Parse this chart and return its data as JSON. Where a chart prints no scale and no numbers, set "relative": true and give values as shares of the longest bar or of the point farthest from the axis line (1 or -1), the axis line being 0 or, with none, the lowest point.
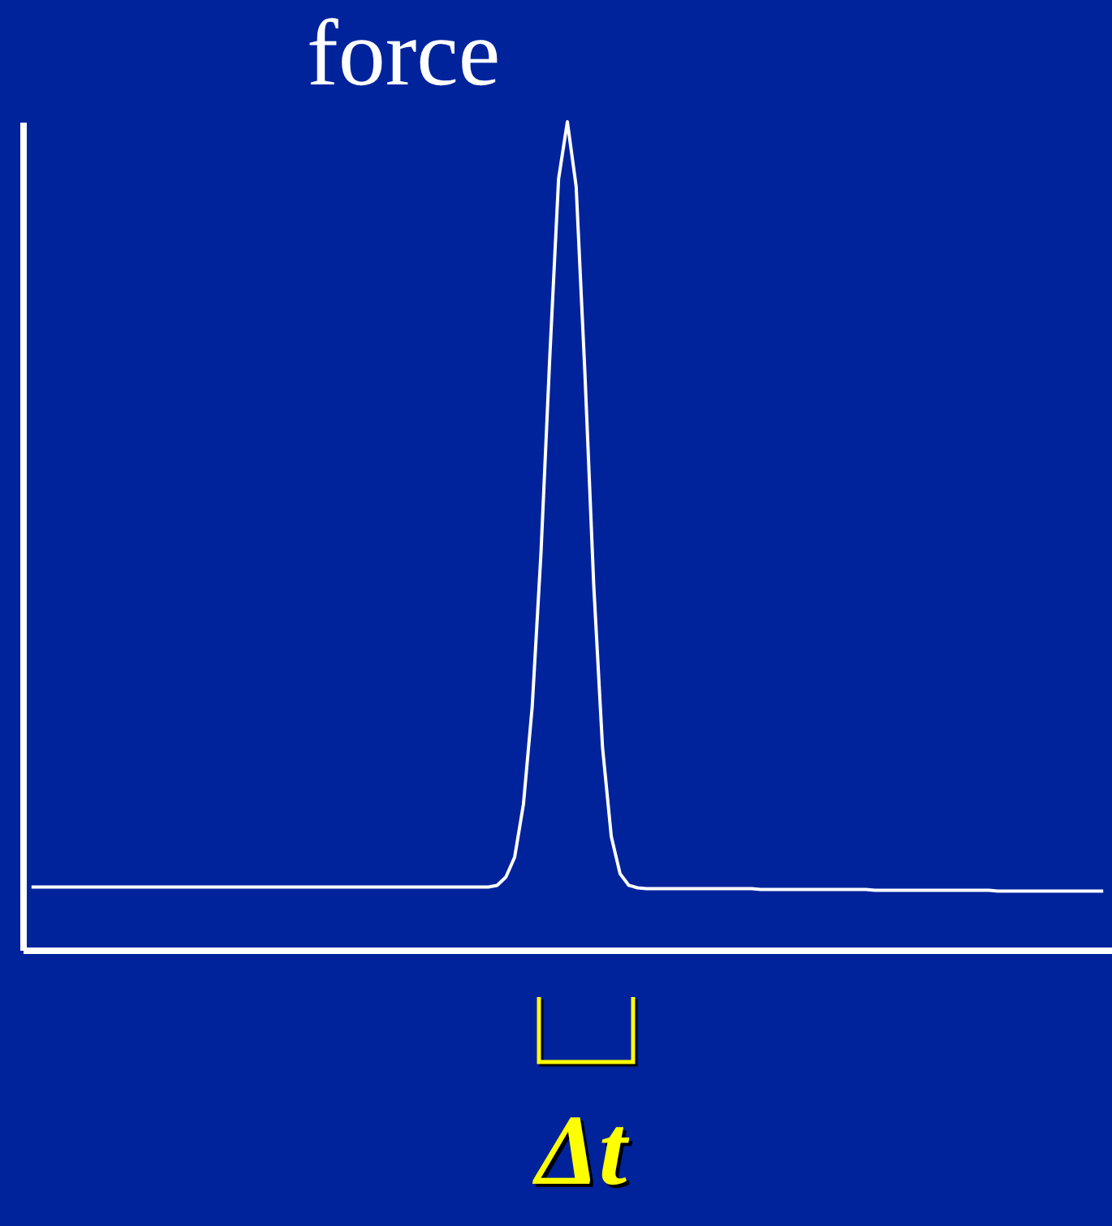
{
  "chart_data": {
    "type": "line",
    "title": "force",
    "relative": true,
    "grid": false,
    "line_style": "solid",
    "categories": [
      null,
      null,
      null,
      null,
      null,
      null,
      null,
      null,
      null,
      null,
      null,
      null,
      null,
      null,
      null,
      null,
      null,
      null,
      null,
      null,
      null,
      null,
      null,
      null,
      null,
      null,
      null,
      null,
      null,
      null,
      null,
      null,
      null,
      null,
      null,
      null,
      null,
      null,
      null,
      null,
      null,
      null,
      null,
      null,
      null,
      null,
      null,
      null,
      null,
      null,
      null,
      null,
      null,
      null,
      null,
      null,
      null,
      null,
      null,
      null,
      null,
      null,
      null,
      null,
      null,
      null,
      null,
      null,
      null,
      null,
      null,
      null,
      null,
      null,
      null,
      null,
      null,
      null,
      null,
      null,
      null,
      null,
      null,
      null,
      null,
      null,
      null,
      null,
      null,
      null,
      null,
      null,
      null,
      null,
      null,
      null,
      null,
      null,
      null,
      null,
      null,
      null,
      null,
      null,
      null,
      null,
      null,
      null,
      null,
      null,
      null,
      null,
      null,
      null,
      null,
      null,
      null,
      null,
      null,
      null,
      null,
      null,
      null
    ],
    "series": [
      {
        "color": "#ffffff",
        "values": [
          0.076,
          0.076,
          0.076,
          0.076,
          0.076,
          0.076,
          0.076,
          0.076,
          0.076,
          0.076,
          0.076,
          0.076,
          0.076,
          0.076,
          0.076,
          0.076,
          0.076,
          0.076,
          0.076,
          0.076,
          0.076,
          0.076,
          0.076,
          0.076,
          0.076,
          0.076,
          0.076,
          0.076,
          0.076,
          0.076,
          0.076,
          0.076,
          0.076,
          0.076,
          0.076,
          0.076,
          0.076,
          0.076,
          0.076,
          0.076,
          0.076,
          0.076,
          0.076,
          0.076,
          0.076,
          0.076,
          0.076,
          0.076,
          0.076,
          0.076,
          0.076,
          0.076,
          0.076,
          0.078,
          0.088,
          0.112,
          0.176,
          0.294,
          0.48,
          0.716,
          0.931,
          1,
          0.922,
          0.696,
          0.441,
          0.245,
          0.137,
          0.092,
          0.078,
          0.075,
          0.074,
          0.074,
          0.074,
          0.074,
          0.074,
          0.074,
          0.074,
          0.074,
          0.074,
          0.074,
          0.074,
          0.074,
          0.074,
          0.073,
          0.073,
          0.073,
          0.073,
          0.073,
          0.073,
          0.073,
          0.073,
          0.073,
          0.073,
          0.073,
          0.073,
          0.073,
          0.072,
          0.072,
          0.072,
          0.072,
          0.072,
          0.072,
          0.072,
          0.072,
          0.072,
          0.072,
          0.072,
          0.072,
          0.072,
          0.072,
          0.071,
          0.071,
          0.071,
          0.071,
          0.071,
          0.071,
          0.071,
          0.071,
          0.071,
          0.071,
          0.071,
          0.071,
          0.071
        ]
      }
    ],
    "annotations": [
      "Δt"
    ]
  }
}
